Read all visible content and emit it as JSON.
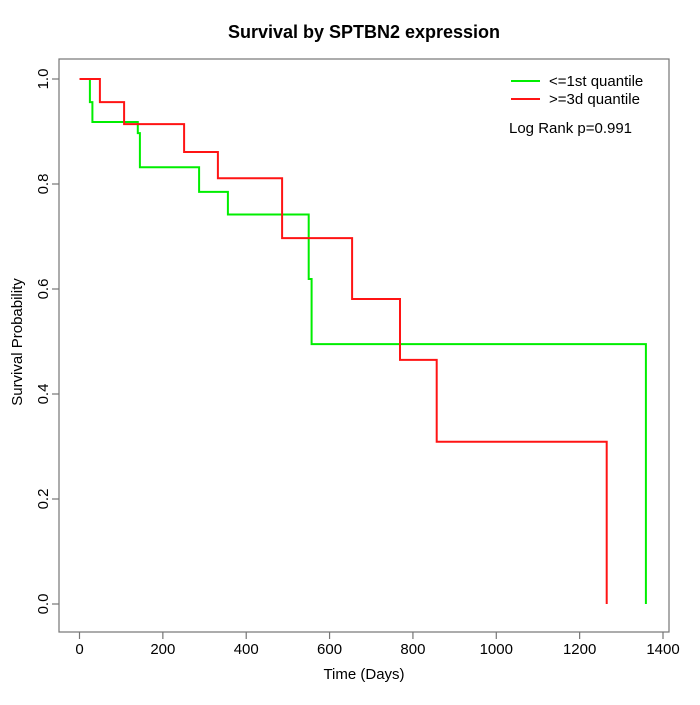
{
  "chart_data": {
    "type": "line",
    "subtype": "kaplan-meier-step",
    "title": "Survival by SPTBN2 expression",
    "xlabel": "Time (Days)",
    "ylabel": "Survival Probability",
    "xlim": [
      0,
      1400
    ],
    "ylim": [
      0.0,
      1.0
    ],
    "x_ticks": [
      0,
      200,
      400,
      600,
      800,
      1000,
      1200,
      1400
    ],
    "y_ticks": [
      0.0,
      0.2,
      0.4,
      0.6,
      0.8,
      1.0
    ],
    "grid": false,
    "legend_position": "top-right",
    "annotation": "Log Rank p=0.991",
    "axis_color": "#757575",
    "series": [
      {
        "name": "<=1st quantile",
        "color": "#00ee00",
        "steps": [
          [
            0,
            1.0
          ],
          [
            25,
            0.956
          ],
          [
            31,
            0.918
          ],
          [
            140,
            0.897
          ],
          [
            145,
            0.832
          ],
          [
            287,
            0.785
          ],
          [
            356,
            0.742
          ],
          [
            550,
            0.619
          ],
          [
            557,
            0.495
          ],
          [
            1359,
            0.0
          ]
        ]
      },
      {
        "name": ">=3d quantile",
        "color": "#ff1414",
        "steps": [
          [
            0,
            1.0
          ],
          [
            49,
            0.956
          ],
          [
            107,
            0.914
          ],
          [
            251,
            0.861
          ],
          [
            332,
            0.811
          ],
          [
            486,
            0.697
          ],
          [
            654,
            0.581
          ],
          [
            769,
            0.465
          ],
          [
            857,
            0.309
          ],
          [
            1265,
            0.0
          ]
        ]
      }
    ]
  }
}
